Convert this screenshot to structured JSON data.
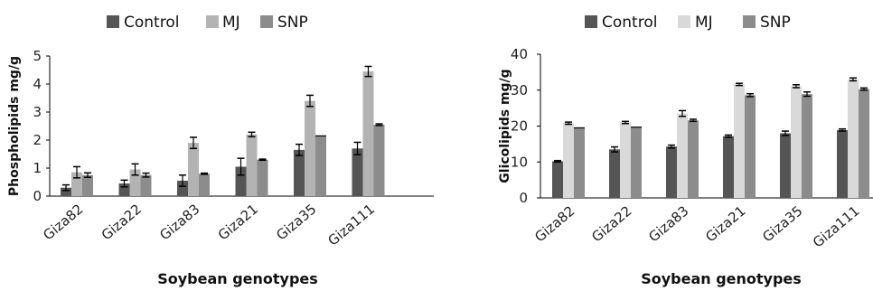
{
  "chart_data": [
    {
      "type": "bar",
      "title": "",
      "ylabel": "Phospholipids mg/g",
      "xlabel": "Soybean genotypes",
      "ylim": [
        0,
        5
      ],
      "yticks": [
        0,
        1,
        2,
        3,
        4,
        5
      ],
      "categories": [
        "Giza82",
        "Giza22",
        "Giza83",
        "Giza21",
        "Giza35",
        "Giza111"
      ],
      "legend_position": "top",
      "error_bars": true,
      "series": [
        {
          "name": "Control",
          "color": "#555555",
          "values": [
            0.3,
            0.45,
            0.55,
            1.05,
            1.65,
            1.7
          ],
          "errors": [
            0.1,
            0.12,
            0.2,
            0.3,
            0.2,
            0.22
          ]
        },
        {
          "name": "MJ",
          "color": "#b3b3b3",
          "values": [
            0.85,
            0.95,
            1.9,
            2.2,
            3.4,
            4.45
          ],
          "errors": [
            0.2,
            0.2,
            0.2,
            0.08,
            0.2,
            0.18
          ]
        },
        {
          "name": "SNP",
          "color": "#8c8c8c",
          "values": [
            0.75,
            0.75,
            0.8,
            1.3,
            2.15,
            2.55
          ],
          "errors": [
            0.08,
            0.07,
            0.02,
            0.02,
            0,
            0.03
          ]
        }
      ]
    },
    {
      "type": "bar",
      "title": "",
      "ylabel": "Glicolipids mg/g",
      "xlabel": "Soybean genotypes",
      "ylim": [
        0,
        40
      ],
      "yticks": [
        0,
        10,
        20,
        30,
        40
      ],
      "categories": [
        "Giza82",
        "Giza22",
        "Giza83",
        "Giza21",
        "Giza35",
        "Giza111"
      ],
      "legend_position": "top",
      "error_bars": true,
      "series": [
        {
          "name": "Control",
          "color": "#555555",
          "values": [
            10.2,
            13.5,
            14.3,
            17.2,
            18.0,
            18.9
          ],
          "errors": [
            0.2,
            0.7,
            0.4,
            0.3,
            0.6,
            0.3
          ]
        },
        {
          "name": "MJ",
          "color": "#d9d9d9",
          "values": [
            20.8,
            21.0,
            23.5,
            31.6,
            31.1,
            33.0
          ],
          "errors": [
            0.3,
            0.3,
            0.8,
            0.3,
            0.4,
            0.4
          ]
        },
        {
          "name": "SNP",
          "color": "#8c8c8c",
          "values": [
            19.5,
            19.7,
            21.6,
            28.6,
            28.9,
            30.3
          ],
          "errors": [
            0,
            0,
            0.3,
            0.4,
            0.6,
            0.3
          ]
        }
      ]
    }
  ]
}
